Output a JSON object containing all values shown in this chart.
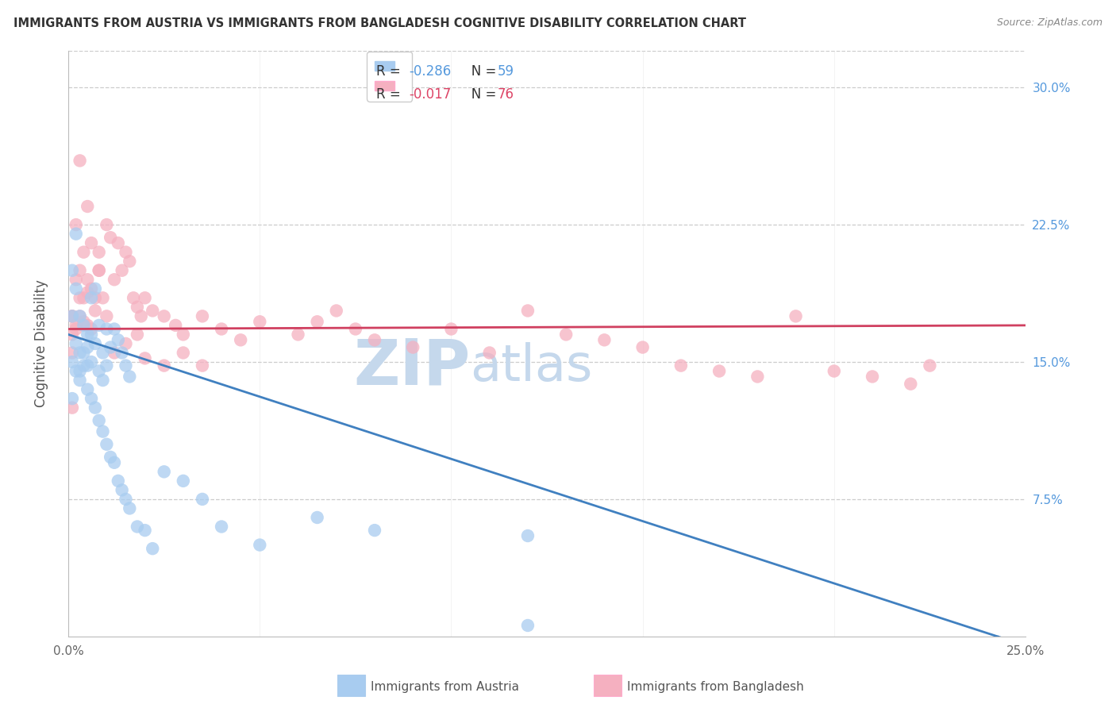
{
  "title": "IMMIGRANTS FROM AUSTRIA VS IMMIGRANTS FROM BANGLADESH COGNITIVE DISABILITY CORRELATION CHART",
  "source": "Source: ZipAtlas.com",
  "ylabel": "Cognitive Disability",
  "legend_label_blue": "Immigrants from Austria",
  "legend_label_pink": "Immigrants from Bangladesh",
  "r_blue": -0.286,
  "n_blue": 59,
  "r_pink": -0.017,
  "n_pink": 76,
  "xlim": [
    0.0,
    0.25
  ],
  "ylim": [
    0.0,
    0.32
  ],
  "background_color": "#ffffff",
  "color_blue": "#A8CCF0",
  "color_pink": "#F5B0C0",
  "color_blue_line": "#4080C0",
  "color_pink_line": "#D04060",
  "color_blue_text": "#5599DD",
  "color_pink_text": "#DD4466",
  "watermark_zip": "#C5D8EC",
  "watermark_atlas": "#C5D8EC",
  "blue_slope": -0.68,
  "blue_intercept": 0.165,
  "pink_slope": 0.008,
  "pink_intercept": 0.168,
  "blue_x": [
    0.001,
    0.001,
    0.002,
    0.002,
    0.002,
    0.003,
    0.003,
    0.003,
    0.004,
    0.004,
    0.005,
    0.005,
    0.005,
    0.006,
    0.006,
    0.006,
    0.007,
    0.007,
    0.008,
    0.008,
    0.009,
    0.009,
    0.01,
    0.01,
    0.011,
    0.012,
    0.013,
    0.014,
    0.015,
    0.016,
    0.001,
    0.001,
    0.002,
    0.003,
    0.004,
    0.005,
    0.006,
    0.007,
    0.008,
    0.009,
    0.01,
    0.011,
    0.012,
    0.013,
    0.014,
    0.015,
    0.016,
    0.018,
    0.02,
    0.022,
    0.025,
    0.03,
    0.035,
    0.04,
    0.05,
    0.065,
    0.08,
    0.12,
    0.12
  ],
  "blue_y": [
    0.2,
    0.175,
    0.22,
    0.19,
    0.16,
    0.175,
    0.155,
    0.145,
    0.17,
    0.148,
    0.165,
    0.158,
    0.148,
    0.185,
    0.165,
    0.15,
    0.19,
    0.16,
    0.17,
    0.145,
    0.155,
    0.14,
    0.168,
    0.148,
    0.158,
    0.168,
    0.162,
    0.155,
    0.148,
    0.142,
    0.15,
    0.13,
    0.145,
    0.14,
    0.155,
    0.135,
    0.13,
    0.125,
    0.118,
    0.112,
    0.105,
    0.098,
    0.095,
    0.085,
    0.08,
    0.075,
    0.07,
    0.06,
    0.058,
    0.048,
    0.09,
    0.085,
    0.075,
    0.06,
    0.05,
    0.065,
    0.058,
    0.055,
    0.006
  ],
  "pink_x": [
    0.001,
    0.001,
    0.002,
    0.002,
    0.003,
    0.003,
    0.004,
    0.004,
    0.005,
    0.005,
    0.006,
    0.006,
    0.007,
    0.008,
    0.009,
    0.01,
    0.011,
    0.012,
    0.013,
    0.014,
    0.015,
    0.016,
    0.017,
    0.018,
    0.019,
    0.02,
    0.022,
    0.025,
    0.028,
    0.03,
    0.035,
    0.04,
    0.045,
    0.05,
    0.06,
    0.065,
    0.07,
    0.075,
    0.08,
    0.09,
    0.1,
    0.11,
    0.12,
    0.13,
    0.14,
    0.15,
    0.16,
    0.17,
    0.18,
    0.19,
    0.2,
    0.21,
    0.22,
    0.225,
    0.005,
    0.008,
    0.01,
    0.012,
    0.015,
    0.018,
    0.02,
    0.025,
    0.03,
    0.035,
    0.002,
    0.003,
    0.001,
    0.001,
    0.002,
    0.003,
    0.004,
    0.005,
    0.006,
    0.007,
    0.008,
    0.001
  ],
  "pink_y": [
    0.175,
    0.165,
    0.195,
    0.17,
    0.2,
    0.175,
    0.21,
    0.185,
    0.195,
    0.17,
    0.215,
    0.19,
    0.185,
    0.21,
    0.185,
    0.175,
    0.218,
    0.195,
    0.215,
    0.2,
    0.21,
    0.205,
    0.185,
    0.18,
    0.175,
    0.185,
    0.178,
    0.175,
    0.17,
    0.165,
    0.175,
    0.168,
    0.162,
    0.172,
    0.165,
    0.172,
    0.178,
    0.168,
    0.162,
    0.158,
    0.168,
    0.155,
    0.178,
    0.165,
    0.162,
    0.158,
    0.148,
    0.145,
    0.142,
    0.175,
    0.145,
    0.142,
    0.138,
    0.148,
    0.235,
    0.2,
    0.225,
    0.155,
    0.16,
    0.165,
    0.152,
    0.148,
    0.155,
    0.148,
    0.225,
    0.26,
    0.175,
    0.155,
    0.168,
    0.185,
    0.172,
    0.188,
    0.168,
    0.178,
    0.2,
    0.125
  ]
}
